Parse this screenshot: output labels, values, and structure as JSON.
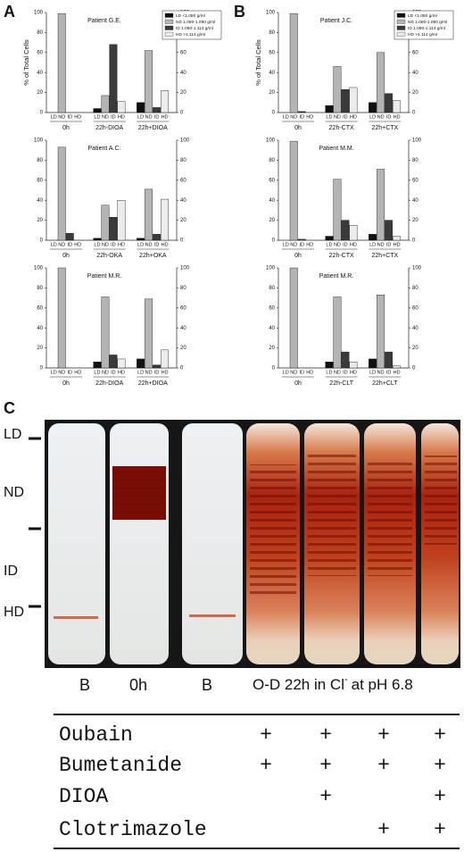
{
  "panel_labels": [
    "A",
    "B",
    "C"
  ],
  "chart_data": [
    {
      "type": "bar",
      "title": "Patient G.E.",
      "y_label": "% of Total Cells",
      "legend": true,
      "categories": [
        "0h",
        "22h-DIOA",
        "22h+DIOA"
      ],
      "bar_labels": [
        "LD",
        "ND",
        "ID",
        "HD"
      ],
      "series": [
        {
          "name": "LD <1.080 g/ml",
          "color": "#111111",
          "values": [
            0,
            4,
            10
          ]
        },
        {
          "name": "ND 1.080-1.090 g/ml",
          "color": "#b4b4b4",
          "values": [
            99,
            17,
            62
          ]
        },
        {
          "name": "ID 1.090-1.114 g/ml",
          "color": "#3a3a3a",
          "values": [
            0,
            68,
            5
          ]
        },
        {
          "name": "HD >1.114 g/ml",
          "color": "#ececec",
          "values": [
            0,
            11,
            22
          ]
        }
      ],
      "ylim": [
        0,
        100
      ],
      "yticks": [
        0,
        20,
        40,
        60,
        80,
        100
      ],
      "y2lim": [
        0,
        100
      ],
      "y2ticks": [
        0,
        20,
        40,
        60,
        80,
        100
      ]
    },
    {
      "type": "bar",
      "title": "Patient A.C.",
      "categories": [
        "0h",
        "22h-OKA",
        "22h+OKA"
      ],
      "bar_labels": [
        "LD",
        "ND",
        "ID",
        "HD"
      ],
      "series": [
        {
          "color": "#111111",
          "values": [
            0,
            2,
            2
          ]
        },
        {
          "color": "#b4b4b4",
          "values": [
            93,
            35,
            51
          ]
        },
        {
          "color": "#3a3a3a",
          "values": [
            7,
            23,
            6
          ]
        },
        {
          "color": "#ececec",
          "values": [
            0,
            40,
            41
          ]
        }
      ],
      "ylim": [
        0,
        100
      ],
      "yticks": [
        0,
        20,
        40,
        60,
        80,
        100
      ],
      "y2lim": [
        0,
        100
      ],
      "y2ticks": [
        0,
        20,
        40,
        60,
        80,
        100
      ]
    },
    {
      "type": "bar",
      "title": "Patient M.R.",
      "categories": [
        "0h",
        "22h-DIOA",
        "22h+DIOA"
      ],
      "bar_labels": [
        "LD",
        "ND",
        "ID",
        "HD"
      ],
      "series": [
        {
          "color": "#111111",
          "values": [
            0,
            6,
            9
          ]
        },
        {
          "color": "#b4b4b4",
          "values": [
            100,
            71,
            69
          ]
        },
        {
          "color": "#3a3a3a",
          "values": [
            0,
            13,
            3
          ]
        },
        {
          "color": "#ececec",
          "values": [
            0,
            9,
            18
          ]
        }
      ],
      "ylim": [
        0,
        100
      ],
      "yticks": [
        0,
        20,
        40,
        60,
        80,
        100
      ],
      "y2lim": [
        0,
        100
      ],
      "y2ticks": [
        0,
        20,
        40,
        60,
        80,
        100
      ]
    },
    {
      "type": "bar",
      "title": "Patient J.C.",
      "y_label": "% of Total Cells",
      "legend": true,
      "categories": [
        "0h",
        "22h-CTX",
        "22h+CTX"
      ],
      "bar_labels": [
        "LD",
        "ND",
        "ID",
        "HD"
      ],
      "series": [
        {
          "name": "LD <1.080 g/ml",
          "color": "#111111",
          "values": [
            0,
            7,
            10
          ]
        },
        {
          "name": "ND 1.080-1.090 g/ml",
          "color": "#b4b4b4",
          "values": [
            99,
            46,
            60
          ]
        },
        {
          "name": "ID 1.090-1.114 g/ml",
          "color": "#3a3a3a",
          "values": [
            1,
            23,
            19
          ]
        },
        {
          "name": "HD >1.114 g/ml",
          "color": "#ececec",
          "values": [
            0,
            25,
            12
          ]
        }
      ],
      "ylim": [
        0,
        100
      ],
      "yticks": [
        0,
        20,
        40,
        60,
        80,
        100
      ],
      "y2lim": [
        0,
        100
      ],
      "y2ticks": [
        0,
        20,
        40,
        60,
        80,
        100
      ]
    },
    {
      "type": "bar",
      "title": "Patient M.M.",
      "categories": [
        "0h",
        "22h-CTX",
        "22h+CTX"
      ],
      "bar_labels": [
        "LD",
        "ND",
        "ID",
        "HD"
      ],
      "series": [
        {
          "color": "#111111",
          "values": [
            0,
            4,
            6
          ]
        },
        {
          "color": "#b4b4b4",
          "values": [
            99,
            61,
            71
          ]
        },
        {
          "color": "#3a3a3a",
          "values": [
            1,
            20,
            20
          ]
        },
        {
          "color": "#ececec",
          "values": [
            0,
            15,
            4
          ]
        }
      ],
      "ylim": [
        0,
        100
      ],
      "yticks": [
        0,
        20,
        40,
        60,
        80,
        100
      ],
      "y2lim": [
        0,
        100
      ],
      "y2ticks": [
        0,
        20,
        40,
        60,
        80,
        100
      ]
    },
    {
      "type": "bar",
      "title": "Patient M.R.",
      "categories": [
        "0h",
        "22h-CLT",
        "22h+CLT"
      ],
      "bar_labels": [
        "LD",
        "ND",
        "ID",
        "HD"
      ],
      "series": [
        {
          "color": "#111111",
          "values": [
            0,
            6,
            9
          ]
        },
        {
          "color": "#b4b4b4",
          "values": [
            100,
            71,
            73
          ]
        },
        {
          "color": "#3a3a3a",
          "values": [
            0,
            16,
            16
          ]
        },
        {
          "color": "#ececec",
          "values": [
            0,
            6,
            2
          ]
        }
      ],
      "ylim": [
        0,
        100
      ],
      "yticks": [
        0,
        20,
        40,
        60,
        80,
        100
      ],
      "y2lim": [
        0,
        100
      ],
      "y2ticks": [
        0,
        20,
        40,
        60,
        80,
        100
      ]
    }
  ],
  "photo": {
    "density_labels": [
      "LD",
      "ND",
      "ID",
      "HD"
    ],
    "tube_labels": [
      "B",
      "0h",
      "B"
    ],
    "treatment_label": [
      "O-D 22h in Cl",
      "-",
      "at pH 6.8"
    ]
  },
  "table": {
    "rows": [
      {
        "label": "Oubain",
        "marks": [
          "+",
          "+",
          "+",
          "+"
        ]
      },
      {
        "label": "Bumetanide",
        "marks": [
          "+",
          "+",
          "+",
          "+"
        ]
      },
      {
        "label": "DIOA",
        "marks": [
          null,
          "+",
          null,
          "+"
        ]
      },
      {
        "label": "Clotrimazole",
        "marks": [
          null,
          null,
          "+",
          "+"
        ]
      }
    ]
  }
}
